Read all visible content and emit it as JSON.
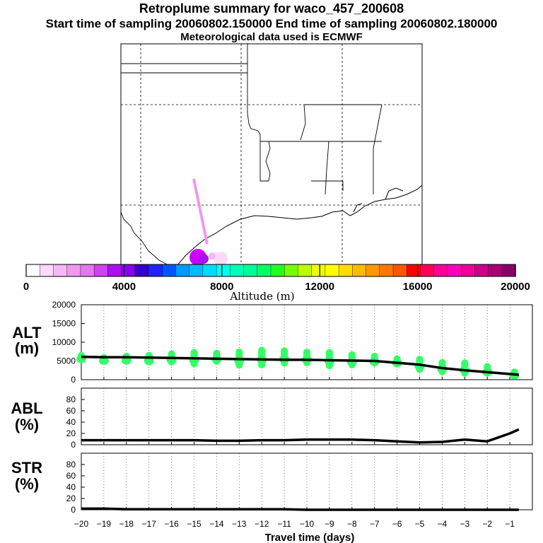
{
  "title": "Retroplume summary for waco_457_200608",
  "subtitle": "Start time of sampling 20060802.150000     End time of sampling 20060802.180000",
  "met_note": "Meteorological data used is ECMWF",
  "colorbar": {
    "label": "Altitude (m)",
    "tick_labels": [
      "0",
      "4000",
      "8000",
      "12000",
      "16000",
      "20000"
    ],
    "tick_values": [
      0,
      4000,
      8000,
      12000,
      16000,
      20000
    ],
    "range": [
      0,
      20000
    ],
    "colors": [
      "#ffffff",
      "#fbd9fb",
      "#f5b8f5",
      "#ee99ee",
      "#e277ee",
      "#cc44ee",
      "#aa11ee",
      "#8800ee",
      "#3300cc",
      "#2222ff",
      "#0055ff",
      "#0099ff",
      "#00bbff",
      "#00ddff",
      "#00ffee",
      "#00ffbb",
      "#00ff99",
      "#00ff66",
      "#22ff22",
      "#77ff00",
      "#bbff00",
      "#eeff00",
      "#ffff00",
      "#ffdd00",
      "#ffbb00",
      "#ff9900",
      "#ff7700",
      "#ff5500",
      "#ff0000",
      "#ff0055",
      "#ff0099",
      "#ff00bb",
      "#ee0099",
      "#cc0088",
      "#aa0077",
      "#880066"
    ]
  },
  "chart_data": [
    {
      "type": "line",
      "panel": "ALT",
      "ylabel": "ALT\n(m)",
      "ylabel_lines": [
        "ALT",
        "(m)"
      ],
      "ylim": [
        0,
        20000
      ],
      "yticks": [
        0,
        5000,
        10000,
        15000,
        20000
      ],
      "ytick_labels": [
        "0",
        "5000",
        "10000",
        "15000",
        "20000"
      ],
      "x": [
        -20,
        -19,
        -18,
        -17,
        -16,
        -15,
        -14,
        -13,
        -12,
        -11,
        -10,
        -9,
        -8,
        -7,
        -6,
        -5,
        -4,
        -3,
        -2,
        -1,
        -0.6
      ],
      "series": [
        {
          "name": "mean altitude",
          "color": "#000000",
          "values": [
            6100,
            6000,
            6000,
            5900,
            5800,
            5700,
            5600,
            5500,
            5400,
            5300,
            5300,
            5200,
            5100,
            5000,
            4500,
            4000,
            3100,
            2500,
            2000,
            1500,
            1300
          ]
        }
      ],
      "scatter": {
        "name": "plume altitude spread",
        "color": "#33ff66",
        "x": [
          -20,
          -19,
          -18,
          -17,
          -16,
          -15,
          -14,
          -13,
          -12,
          -11,
          -10,
          -9,
          -8,
          -7,
          -6,
          -5,
          -4,
          -3,
          -2,
          -0.8
        ],
        "low": [
          4800,
          4500,
          4200,
          3800,
          3800,
          3300,
          4000,
          2900,
          3000,
          3500,
          3600,
          2800,
          3000,
          3500,
          3600,
          1800,
          1200,
          800,
          800,
          500
        ],
        "high": [
          7400,
          6800,
          7200,
          7400,
          7800,
          8200,
          8000,
          8300,
          8800,
          8600,
          8300,
          8200,
          7600,
          7200,
          6500,
          6400,
          5500,
          5400,
          4400,
          3000
        ]
      }
    },
    {
      "type": "line",
      "panel": "ABL",
      "ylabel_lines": [
        "ABL",
        "(%)"
      ],
      "ylim": [
        0,
        100
      ],
      "yticks": [
        0,
        20,
        40,
        60,
        80
      ],
      "ytick_labels": [
        "0",
        "20",
        "40",
        "60",
        "80"
      ],
      "x": [
        -20,
        -19,
        -18,
        -17,
        -16,
        -15,
        -14,
        -13,
        -12,
        -11,
        -10,
        -9,
        -8,
        -7,
        -6,
        -5,
        -4,
        -3,
        -2,
        -1,
        -0.6
      ],
      "series": [
        {
          "name": "ABL fraction",
          "color": "#000000",
          "values": [
            8,
            8,
            8,
            8,
            8,
            8,
            7,
            7,
            8,
            8,
            9,
            9,
            9,
            8,
            6,
            4,
            5,
            9,
            6,
            20,
            27
          ]
        }
      ]
    },
    {
      "type": "line",
      "panel": "STR",
      "ylabel_lines": [
        "STR",
        "(%)"
      ],
      "ylim": [
        0,
        100
      ],
      "yticks": [
        0,
        20,
        40,
        60,
        80
      ],
      "ytick_labels": [
        "0",
        "20",
        "40",
        "60",
        "80"
      ],
      "x": [
        -20,
        -19,
        -18,
        -17,
        -16,
        -15,
        -14,
        -13,
        -12,
        -11,
        -10,
        -9,
        -8,
        -7,
        -6,
        -5,
        -4,
        -3,
        -2,
        -1,
        -0.6
      ],
      "series": [
        {
          "name": "stratospheric fraction",
          "color": "#000000",
          "values": [
            2,
            2,
            1,
            1,
            1,
            1,
            1,
            1,
            1,
            1,
            0,
            0,
            0,
            0,
            0,
            0,
            0,
            0,
            0,
            0,
            0
          ]
        }
      ]
    }
  ],
  "xaxis": {
    "label": "Travel time (days)",
    "range": [
      -20,
      0
    ],
    "tick_values": [
      -20,
      -19,
      -18,
      -17,
      -16,
      -15,
      -14,
      -13,
      -12,
      -11,
      -10,
      -9,
      -8,
      -7,
      -6,
      -5,
      -4,
      -3,
      -2,
      -1
    ],
    "tick_labels": [
      "−20",
      "−19",
      "−18",
      "−17",
      "−16",
      "−15",
      "−14",
      "−13",
      "−12",
      "−11",
      "−10",
      "−9",
      "−8",
      "−7",
      "−6",
      "−5",
      "−4",
      "−3",
      "−2",
      "−1"
    ]
  }
}
